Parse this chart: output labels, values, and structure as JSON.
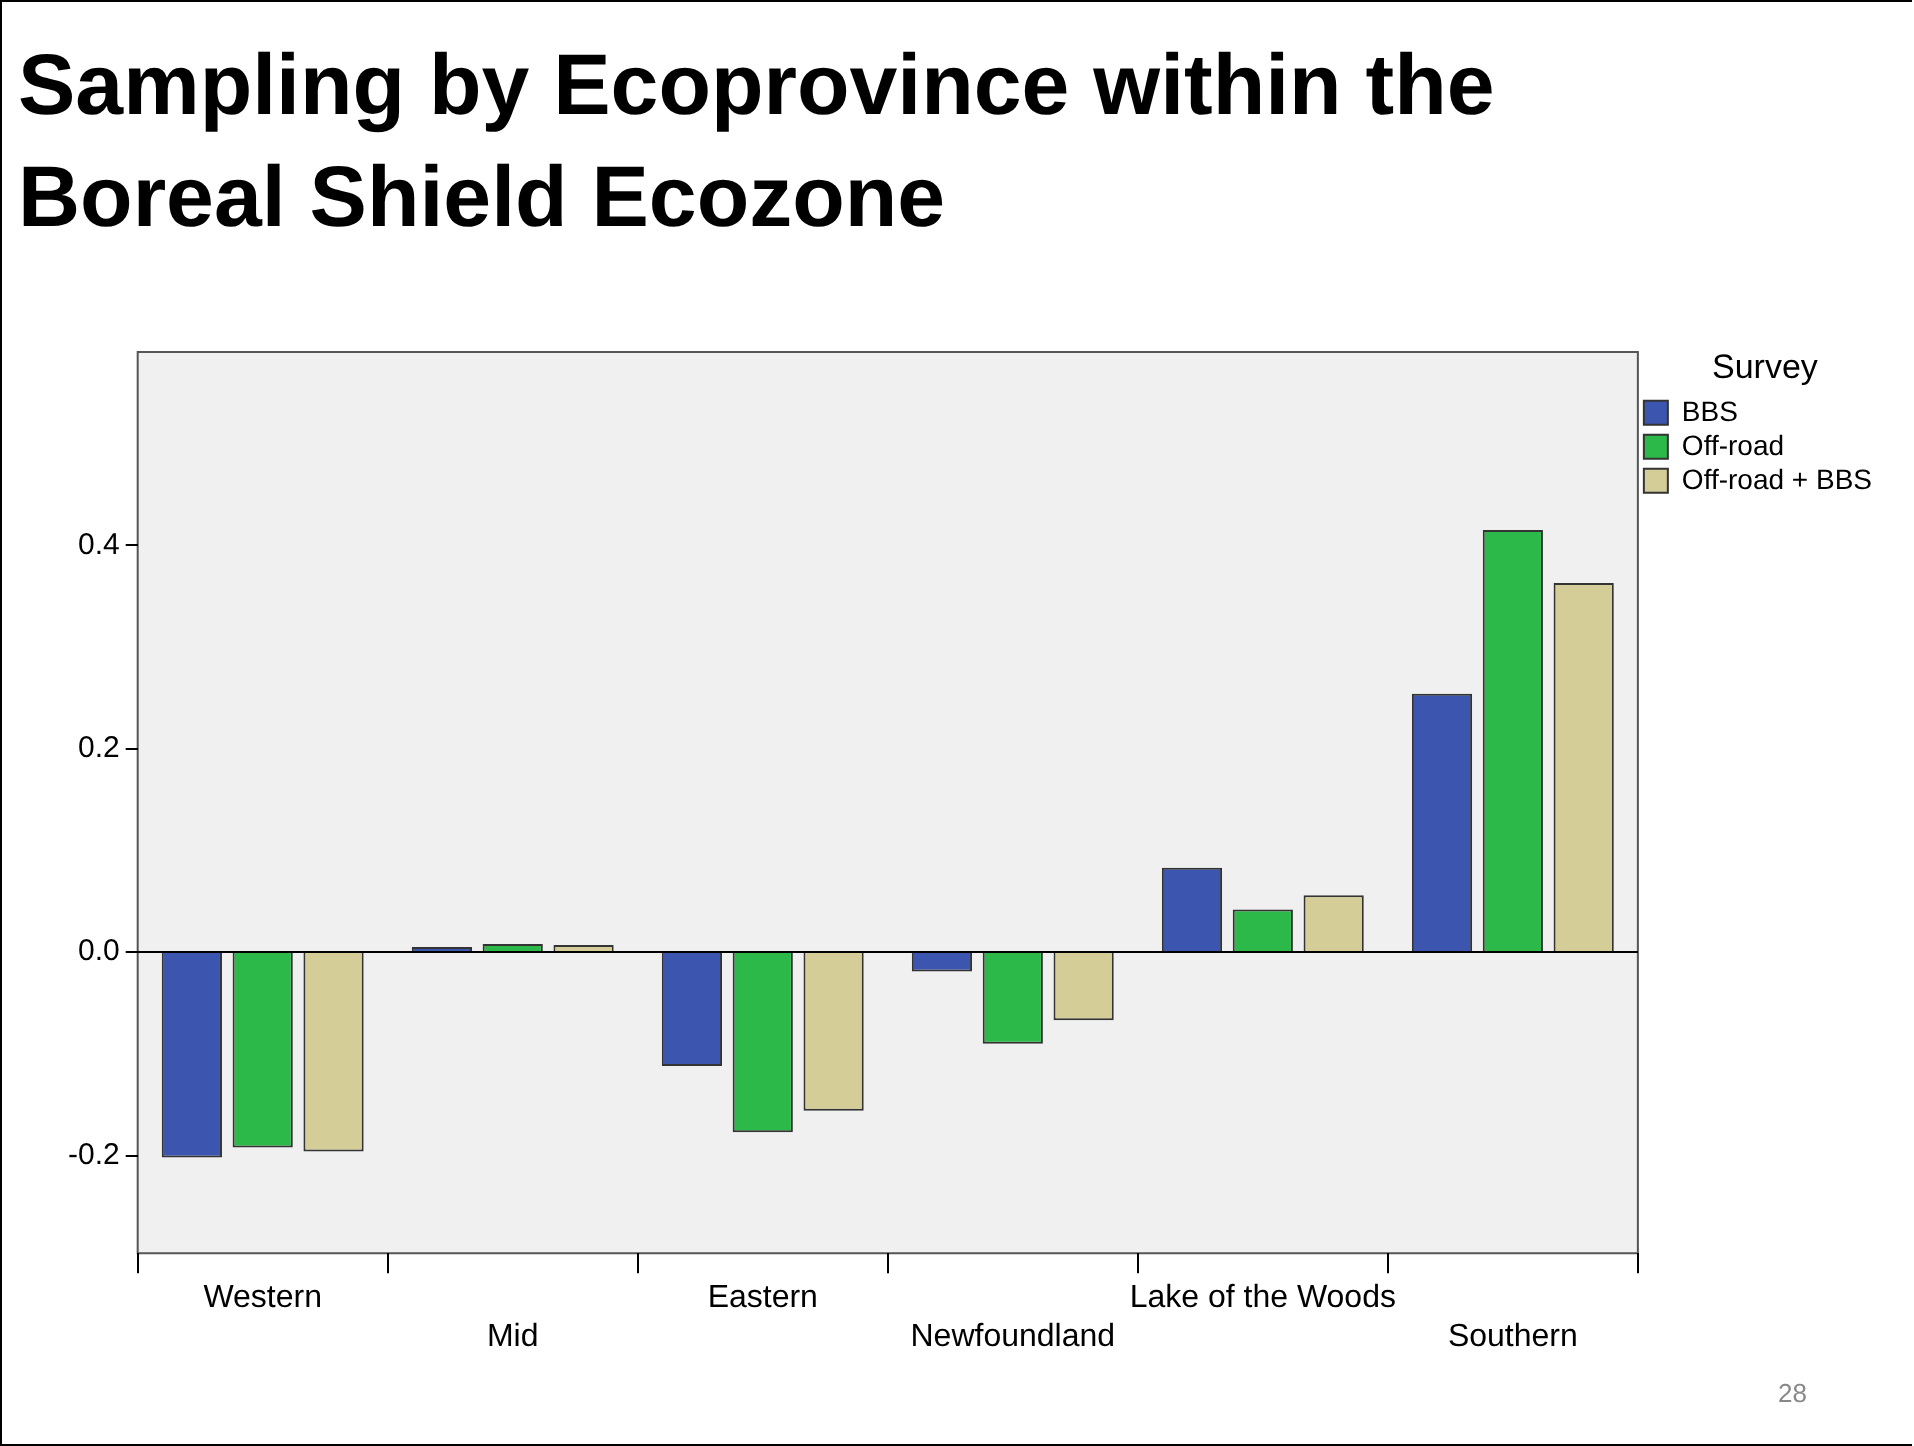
{
  "chart_data": {
    "type": "bar",
    "title": "Sampling by Ecoprovince within the Boreal Shield Ecozone",
    "categories": [
      "Western",
      "Mid",
      "Eastern",
      "Newfoundland",
      "Lake of the Woods",
      "Southern"
    ],
    "series": [
      {
        "name": "BBS",
        "color": "#3c56b0",
        "values": [
          -0.202,
          0.005,
          -0.112,
          -0.019,
          0.083,
          0.254
        ]
      },
      {
        "name": "Off-road",
        "color": "#2db84a",
        "values": [
          -0.192,
          0.008,
          -0.177,
          -0.09,
          0.042,
          0.415
        ]
      },
      {
        "name": "Off-road + BBS",
        "color": "#d4cd97",
        "values": [
          -0.196,
          0.007,
          -0.156,
          -0.067,
          0.056,
          0.363
        ]
      }
    ],
    "legend_title": "Survey",
    "legend": "right",
    "ylim": [
      -0.296,
      0.59
    ],
    "yticks": [
      {
        "value": -0.2,
        "label": "-0.2"
      },
      {
        "value": 0,
        "label": "0.0"
      },
      {
        "value": 0.2,
        "label": "0.2"
      },
      {
        "value": 0.4,
        "label": "0.4"
      }
    ],
    "ref_lines": [
      {
        "axis": "y",
        "value": 0,
        "color": "#000000"
      }
    ],
    "grid": false,
    "annotations": [
      "28"
    ]
  }
}
